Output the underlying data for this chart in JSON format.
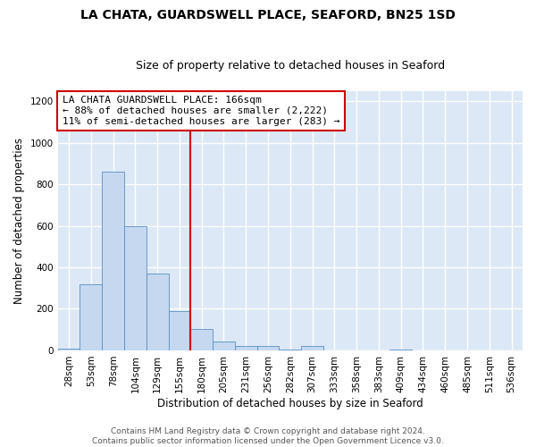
{
  "title_line1": "LA CHATA, GUARDSWELL PLACE, SEAFORD, BN25 1SD",
  "title_line2": "Size of property relative to detached houses in Seaford",
  "xlabel": "Distribution of detached houses by size in Seaford",
  "ylabel": "Number of detached properties",
  "bar_categories": [
    "28sqm",
    "53sqm",
    "78sqm",
    "104sqm",
    "129sqm",
    "155sqm",
    "180sqm",
    "205sqm",
    "231sqm",
    "256sqm",
    "282sqm",
    "307sqm",
    "333sqm",
    "358sqm",
    "383sqm",
    "409sqm",
    "434sqm",
    "460sqm",
    "485sqm",
    "511sqm",
    "536sqm"
  ],
  "bar_values": [
    10,
    320,
    860,
    600,
    370,
    190,
    105,
    45,
    20,
    20,
    5,
    20,
    0,
    0,
    0,
    5,
    0,
    0,
    0,
    0,
    0
  ],
  "bar_color": "#c5d8f0",
  "bar_edge_color": "#5a8fc0",
  "fig_background_color": "#ffffff",
  "ax_background_color": "#dce8f5",
  "grid_color": "#ffffff",
  "vline_x": 6.0,
  "vline_color": "#cc0000",
  "annotation_text": "LA CHATA GUARDSWELL PLACE: 166sqm\n← 88% of detached houses are smaller (2,222)\n11% of semi-detached houses are larger (283) →",
  "annotation_box_color": "#ffffff",
  "annotation_border_color": "#cc0000",
  "footer_text": "Contains HM Land Registry data © Crown copyright and database right 2024.\nContains public sector information licensed under the Open Government Licence v3.0.",
  "ylim": [
    0,
    1250
  ],
  "yticks": [
    0,
    200,
    400,
    600,
    800,
    1000,
    1200
  ],
  "title_fontsize": 10,
  "subtitle_fontsize": 9,
  "axis_label_fontsize": 8.5,
  "tick_fontsize": 7.5,
  "annotation_fontsize": 8,
  "footer_fontsize": 6.5
}
